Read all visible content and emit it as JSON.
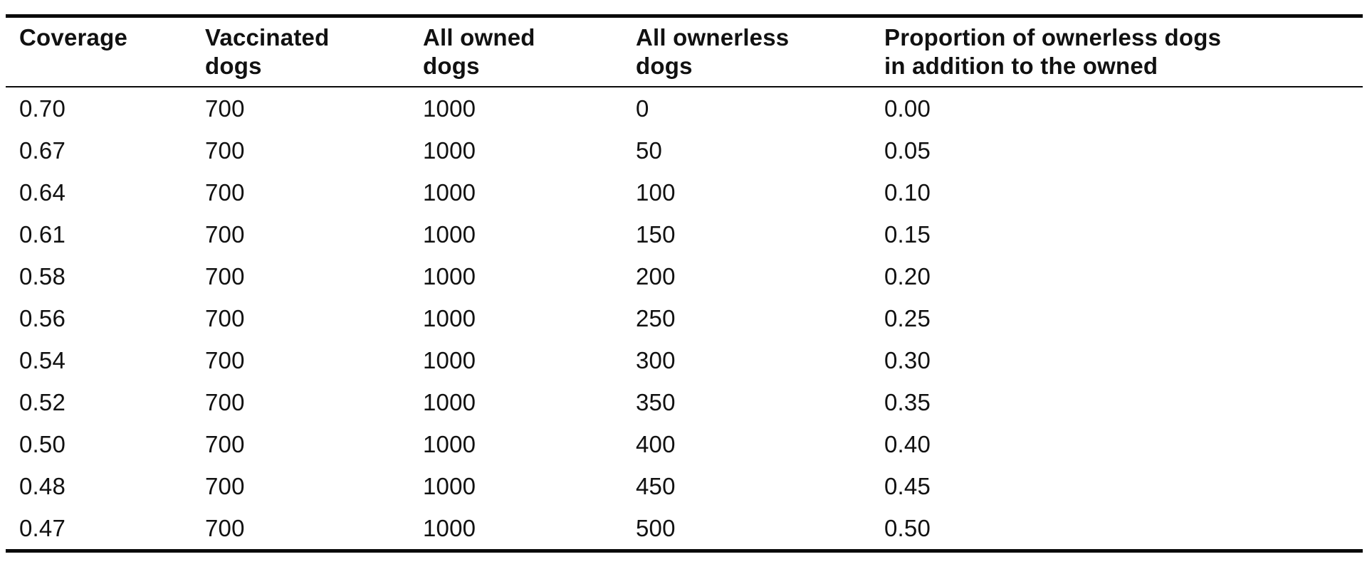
{
  "page": {
    "background_color": "#ffffff",
    "text_color": "#111111",
    "rule_color": "#0a0a0a"
  },
  "table": {
    "columns": [
      {
        "id": "coverage",
        "label": "Coverage"
      },
      {
        "id": "vaccinated-dogs",
        "label": "Vaccinated\ndogs"
      },
      {
        "id": "all-owned-dogs",
        "label": "All owned\ndogs"
      },
      {
        "id": "all-ownerless-dogs",
        "label": "All ownerless\ndogs"
      },
      {
        "id": "proportion-ownerless",
        "label": "Proportion of ownerless dogs\nin addition to the owned"
      }
    ],
    "rows": [
      [
        "0.70",
        "700",
        "1000",
        "0",
        "0.00"
      ],
      [
        "0.67",
        "700",
        "1000",
        "50",
        "0.05"
      ],
      [
        "0.64",
        "700",
        "1000",
        "100",
        "0.10"
      ],
      [
        "0.61",
        "700",
        "1000",
        "150",
        "0.15"
      ],
      [
        "0.58",
        "700",
        "1000",
        "200",
        "0.20"
      ],
      [
        "0.56",
        "700",
        "1000",
        "250",
        "0.25"
      ],
      [
        "0.54",
        "700",
        "1000",
        "300",
        "0.30"
      ],
      [
        "0.52",
        "700",
        "1000",
        "350",
        "0.35"
      ],
      [
        "0.50",
        "700",
        "1000",
        "400",
        "0.40"
      ],
      [
        "0.48",
        "700",
        "1000",
        "450",
        "0.45"
      ],
      [
        "0.47",
        "700",
        "1000",
        "500",
        "0.50"
      ]
    ]
  }
}
